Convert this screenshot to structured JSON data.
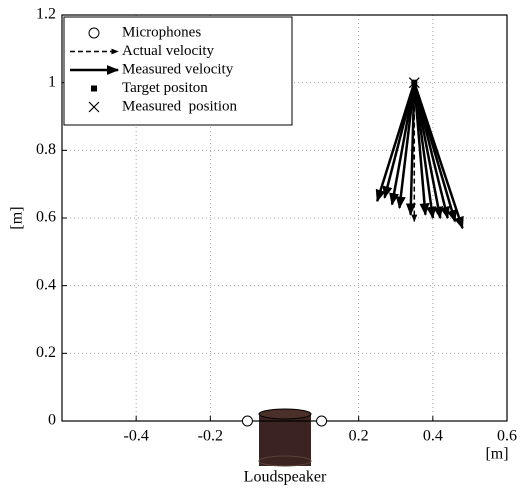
{
  "chart_data": {
    "type": "quiver",
    "xlabel": "[m]",
    "ylabel": "[m]",
    "annotation": "Loudspeaker",
    "xlim": [
      -0.6,
      0.6
    ],
    "xticks": [
      -0.4,
      -0.2,
      0.2,
      0.4,
      0.6
    ],
    "ylim": [
      0,
      1.2
    ],
    "yticks": [
      0,
      0.2,
      0.4,
      0.6,
      0.8,
      1,
      1.2
    ],
    "grid": true,
    "legend": "upper left",
    "microphones": {
      "name": "Microphones",
      "color": "#000000",
      "x": [
        -0.1,
        0.1
      ],
      "y": [
        0,
        0
      ]
    },
    "actual_velocity": {
      "name": "Actual velocity",
      "color": "#000000",
      "x": [
        0.35
      ],
      "y": [
        1.0
      ],
      "x_end": [
        0.35
      ],
      "y_end": [
        0.59
      ]
    },
    "measured_velocity": {
      "name": "Measured velocity",
      "color": "#000000",
      "x": [
        0.35,
        0.35,
        0.35,
        0.35,
        0.35,
        0.35,
        0.35,
        0.35,
        0.35,
        0.35,
        0.35
      ],
      "y": [
        1.0,
        1.0,
        1.0,
        1.0,
        1.0,
        1.0,
        1.0,
        1.0,
        1.0,
        1.0,
        1.0
      ],
      "x_end": [
        0.25,
        0.27,
        0.29,
        0.31,
        0.34,
        0.38,
        0.4,
        0.42,
        0.44,
        0.46,
        0.48
      ],
      "y_end": [
        0.65,
        0.66,
        0.64,
        0.63,
        0.61,
        0.61,
        0.6,
        0.6,
        0.6,
        0.59,
        0.57
      ]
    },
    "target_position": {
      "name": "Target positon",
      "color": "#000000",
      "x": [
        0.35
      ],
      "y": [
        1.0
      ]
    },
    "measured_position": {
      "name": "Measured  position",
      "color": "#000000",
      "x": [
        0.35
      ],
      "y": [
        1.0
      ]
    }
  }
}
